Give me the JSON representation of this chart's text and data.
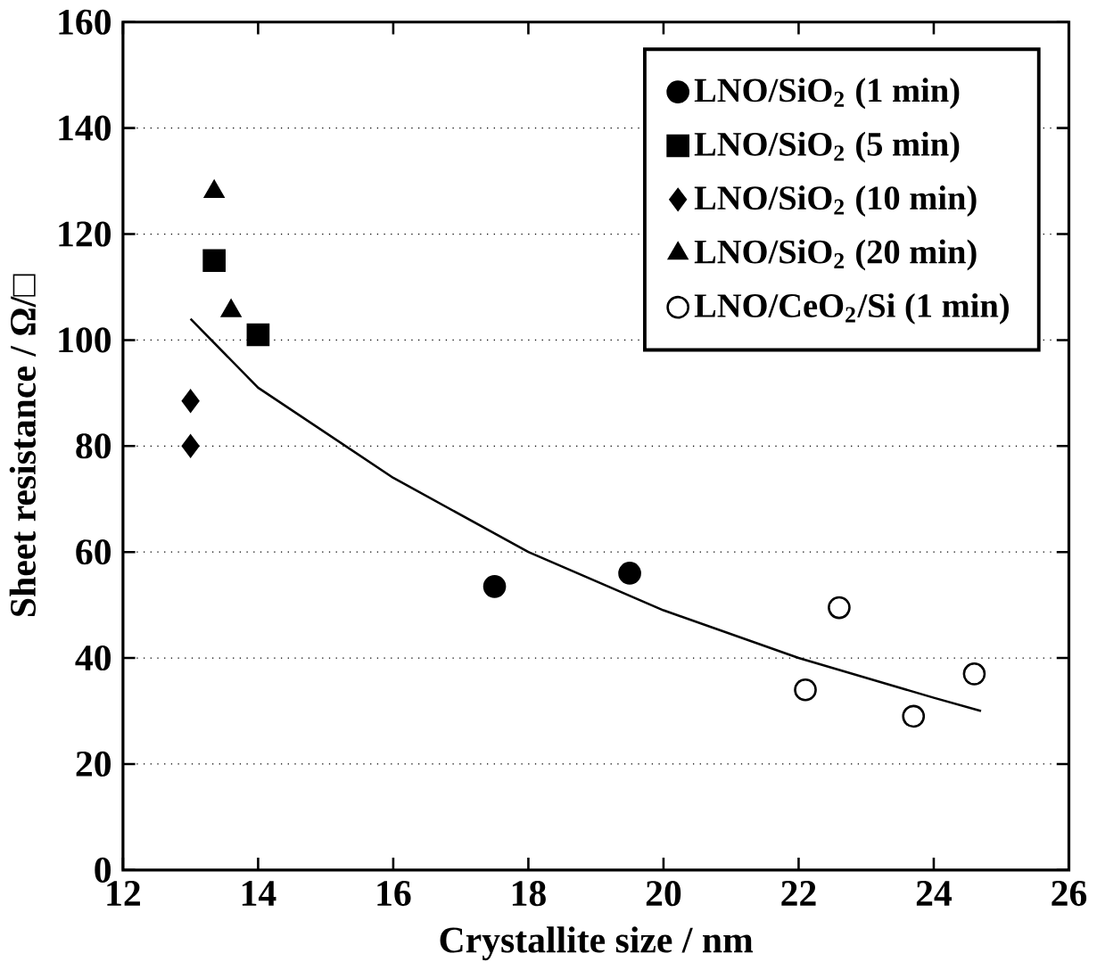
{
  "chart_data": {
    "type": "scatter",
    "xlabel": "Crystallite size / nm",
    "ylabel": "Sheet resistance / Ω/□",
    "xlim": [
      12,
      26
    ],
    "xticks": [
      12,
      14,
      16,
      18,
      20,
      22,
      24,
      26
    ],
    "ylim": [
      0,
      160
    ],
    "yticks": [
      0,
      20,
      40,
      60,
      80,
      100,
      120,
      140,
      160
    ],
    "grid": "y",
    "legend": "top right",
    "series": [
      {
        "name": "LNO/SiO$_{2}$ (1 min)",
        "color": "#000000",
        "marker": "circle",
        "x": [
          17.5,
          19.5
        ],
        "values": [
          53.5,
          56
        ]
      },
      {
        "name": "LNO/SiO$_{2}$ (5 min)",
        "color": "#000000",
        "marker": "square",
        "x": [
          13.35,
          14.0
        ],
        "values": [
          115,
          101
        ]
      },
      {
        "name": "LNO/SiO$_{2}$ (10 min)",
        "color": "#000000",
        "marker": "diamond",
        "x": [
          13.0,
          13.0
        ],
        "values": [
          88.5,
          80
        ]
      },
      {
        "name": "LNO/SiO$_{2}$ (20 min)",
        "color": "#000000",
        "marker": "triangle",
        "x": [
          13.35,
          13.6
        ],
        "values": [
          128,
          105.5
        ]
      },
      {
        "name": "LNO/CeO$_{2}$/Si (1 min)",
        "color": "#ffffff",
        "marker": "circle",
        "x": [
          22.1,
          22.6,
          23.7,
          24.6
        ],
        "values": [
          34,
          49.5,
          29,
          37
        ]
      },
      {
        "type": "line",
        "color": "#000000",
        "marker": "none",
        "x": [
          13,
          14,
          16,
          18,
          20,
          22,
          24,
          24.7
        ],
        "values": [
          104,
          91,
          74,
          60,
          49,
          40,
          32.5,
          30
        ]
      }
    ]
  }
}
